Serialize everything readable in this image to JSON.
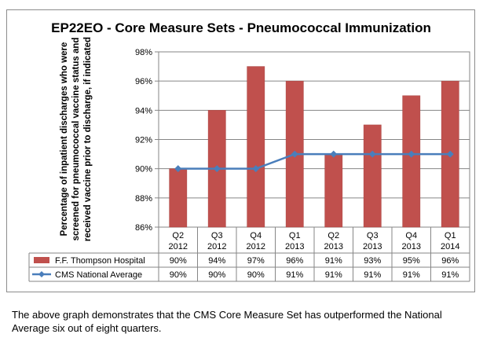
{
  "caption": "The above graph demonstrates that the CMS Core Measure Set has outperformed the National Average six out of eight quarters.",
  "chart_data": {
    "type": "bar",
    "title": "EP22EO - Core Measure Sets - Pneumococcal Immunization",
    "ylabel": [
      "Percentage of inpatient discharges who were",
      "screened for pneumococcal vaccine status and",
      "received vaccine prior to discharge, if indicated"
    ],
    "xlabel": "",
    "ylim": [
      86,
      98
    ],
    "yticks": [
      "86%",
      "88%",
      "90%",
      "92%",
      "94%",
      "96%",
      "98%"
    ],
    "ytick_values": [
      86,
      88,
      90,
      92,
      94,
      96,
      98
    ],
    "grid": "horizontal",
    "legend": "data-table-below",
    "categories": [
      [
        "Q2",
        "2012"
      ],
      [
        "Q3",
        "2012"
      ],
      [
        "Q4",
        "2012"
      ],
      [
        "Q1",
        "2013"
      ],
      [
        "Q2",
        "2013"
      ],
      [
        "Q3",
        "2013"
      ],
      [
        "Q4",
        "2013"
      ],
      [
        "Q1",
        "2014"
      ]
    ],
    "series": [
      {
        "name": "F.F. Thompson Hospital",
        "kind": "bar",
        "color": "#c0504d",
        "values": [
          90,
          94,
          97,
          96,
          91,
          93,
          95,
          96
        ],
        "labels": [
          "90%",
          "94%",
          "97%",
          "96%",
          "91%",
          "93%",
          "95%",
          "96%"
        ]
      },
      {
        "name": "CMS National Average",
        "kind": "line",
        "color": "#4a7ebb",
        "values": [
          90,
          90,
          90,
          91,
          91,
          91,
          91,
          91
        ],
        "labels": [
          "90%",
          "90%",
          "90%",
          "91%",
          "91%",
          "91%",
          "91%",
          "91%"
        ]
      }
    ]
  }
}
